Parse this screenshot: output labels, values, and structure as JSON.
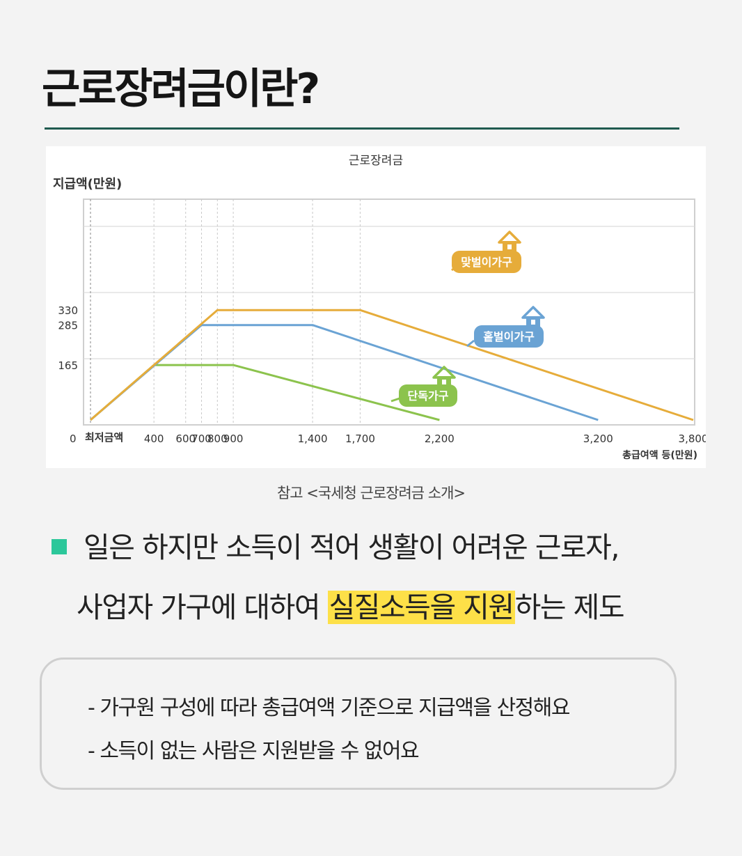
{
  "page": {
    "title": "근로장려금이란?",
    "source_note": "참고 <국세청 근로장려금 소개>",
    "description": {
      "line1": "일은 하지만 소득이 적어 생활이 어려운 근로자,",
      "line2_before": "사업자 가구에 대하여 ",
      "line2_highlight": "실질소득을 지원",
      "line2_after": "하는 제도"
    },
    "info_box": {
      "items": [
        "- 가구원 구성에 따라 총급여액 기준으로 지급액을 산정해요",
        "- 소득이 없는 사람은 지원받을 수 없어요"
      ]
    },
    "colors": {
      "accent_green": "#2cc79a",
      "title_rule": "#1f5a4f",
      "highlight": "#fde048"
    }
  },
  "chart_data": {
    "type": "line",
    "title": "근로장려금",
    "ylabel": "지급액(만원)",
    "xlabel": "총급여액 등(만원)",
    "x_origin_label": "최저금액",
    "y_origin_label": "0",
    "x_ticks": [
      400,
      600,
      700,
      800,
      900,
      1400,
      1700,
      2200,
      3200,
      3800
    ],
    "x_tick_labels": [
      "400",
      "600",
      "700",
      "800",
      "900",
      "1,400",
      "1,700",
      "2,200",
      "3,200",
      "3,800"
    ],
    "y_ticks": [
      165,
      285,
      330
    ],
    "y_tick_labels": [
      "165",
      "285",
      "330"
    ],
    "grid": true,
    "series": [
      {
        "name": "맞벌이가구",
        "color": "#e6ac3a",
        "icon": "house-icon",
        "points": [
          [
            0,
            0
          ],
          [
            800,
            330
          ],
          [
            1700,
            330
          ],
          [
            3800,
            0
          ]
        ]
      },
      {
        "name": "홑벌이가구",
        "color": "#6aa3d4",
        "icon": "house-icon",
        "points": [
          [
            0,
            0
          ],
          [
            700,
            285
          ],
          [
            1400,
            285
          ],
          [
            3200,
            0
          ]
        ]
      },
      {
        "name": "단독가구",
        "color": "#8cc34d",
        "icon": "house-icon",
        "points": [
          [
            0,
            0
          ],
          [
            400,
            165
          ],
          [
            900,
            165
          ],
          [
            2200,
            0
          ]
        ]
      }
    ]
  }
}
